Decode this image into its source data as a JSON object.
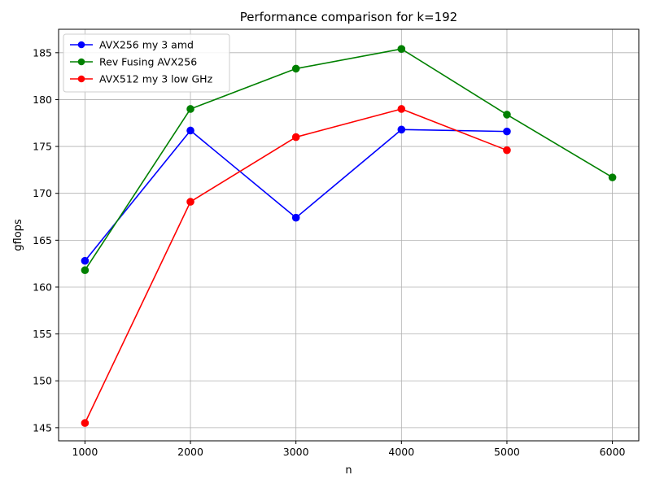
{
  "chart_data": {
    "type": "line",
    "title": "Performance comparison for k=192",
    "xlabel": "n",
    "ylabel": "gflops",
    "xlim": [
      750,
      6250
    ],
    "ylim": [
      143.6,
      187.5
    ],
    "xticks": [
      1000,
      2000,
      3000,
      4000,
      5000,
      6000
    ],
    "xtick_labels": [
      "1000",
      "2000",
      "3000",
      "4000",
      "5000",
      "6000"
    ],
    "yticks": [
      145,
      150,
      155,
      160,
      165,
      170,
      175,
      180,
      185
    ],
    "ytick_labels": [
      "145",
      "150",
      "155",
      "160",
      "165",
      "170",
      "175",
      "180",
      "185"
    ],
    "grid": true,
    "legend_position": "top-left",
    "series": [
      {
        "name": "AVX256 my 3 amd",
        "color": "#0000ff",
        "marker": "circle",
        "x": [
          1000,
          2000,
          3000,
          4000,
          5000
        ],
        "y": [
          162.8,
          176.7,
          167.4,
          176.8,
          176.6
        ]
      },
      {
        "name": "Rev Fusing AVX256",
        "color": "#008000",
        "marker": "circle",
        "x": [
          1000,
          2000,
          3000,
          4000,
          5000,
          6000
        ],
        "y": [
          161.8,
          179.0,
          183.3,
          185.4,
          178.4,
          171.7
        ]
      },
      {
        "name": "AVX512 my 3 low GHz",
        "color": "#ff0000",
        "marker": "circle",
        "x": [
          1000,
          2000,
          3000,
          4000,
          5000
        ],
        "y": [
          145.5,
          169.1,
          176.0,
          179.0,
          174.6
        ]
      }
    ]
  }
}
